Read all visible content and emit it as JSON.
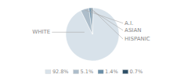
{
  "chart_data": {
    "type": "pie",
    "categories": [
      "WHITE",
      "A.I.",
      "ASIAN",
      "HISPANIC"
    ],
    "values": [
      92.8,
      5.1,
      1.4,
      0.7
    ],
    "value_labels": [
      "92.8%",
      "5.1%",
      "1.4%",
      "0.7%"
    ],
    "colors": [
      "#d8e2ea",
      "#adbdca",
      "#6b8fa8",
      "#2e4f66"
    ]
  }
}
